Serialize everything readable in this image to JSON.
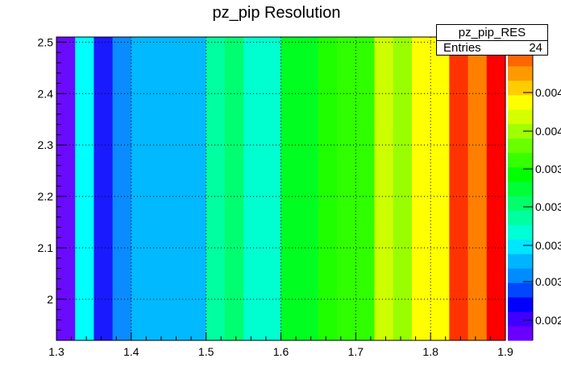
{
  "chart_data": {
    "type": "heatmap",
    "title": "pz_pip Resolution",
    "xlabel": "",
    "ylabel": "",
    "xlim": [
      1.3,
      1.9
    ],
    "ylim": [
      1.92,
      2.51
    ],
    "x_ticks": [
      "1.3",
      "1.4",
      "1.5",
      "1.6",
      "1.7",
      "1.8",
      "1.9"
    ],
    "y_ticks": [
      "2",
      "2.1",
      "2.2",
      "2.3",
      "2.4",
      "2.5"
    ],
    "grid": true,
    "x_bin_edges": [
      1.3,
      1.325,
      1.35,
      1.375,
      1.4,
      1.425,
      1.45,
      1.475,
      1.5,
      1.525,
      1.55,
      1.575,
      1.6,
      1.625,
      1.65,
      1.675,
      1.7,
      1.725,
      1.75,
      1.775,
      1.8,
      1.825,
      1.85,
      1.875,
      1.9
    ],
    "values": [
      0.00225,
      0.00275,
      0.00235,
      0.00255,
      0.0027,
      0.0027,
      0.0027,
      0.0027,
      0.00295,
      0.00305,
      0.00285,
      0.00285,
      0.0032,
      0.0032,
      0.00325,
      0.0033,
      0.0033,
      0.0036,
      0.00365,
      0.0038,
      0.0038,
      0.00415,
      0.0043,
      0.0044
    ],
    "colorbar_labels": [
      "0.002",
      "0.003",
      "0.003",
      "0.003",
      "0.003",
      "0.004",
      "0.004"
    ],
    "colors": {
      "0.00225": "#6a0aff",
      "0.00235": "#1a1aff",
      "0.00255": "#0a8bff",
      "0.0027": "#00b9ff",
      "0.00275": "#00ffff",
      "0.00285": "#00ffd0",
      "0.00295": "#00ffa0",
      "0.00305": "#00ff70",
      "0.0032": "#00ff20",
      "0.00325": "#20ff00",
      "0.0033": "#30ff00",
      "0.0036": "#ccff00",
      "0.00365": "#99ff00",
      "0.0038": "#ffff00",
      "0.00415": "#ff3300",
      "0.0043": "#ff7f00",
      "0.0044": "#ff0000"
    },
    "colorbar_colors": [
      "#6a00ff",
      "#3f00ff",
      "#0000ff",
      "#0047ff",
      "#008bff",
      "#00b4ff",
      "#00e6ff",
      "#00ffd5",
      "#00ffa0",
      "#00ff6a",
      "#00ff36",
      "#00ff00",
      "#36ff00",
      "#6aff00",
      "#a0ff00",
      "#d5ff00",
      "#ffff00",
      "#ffcc00",
      "#ff9900",
      "#ff6600",
      "#ff3300"
    ]
  },
  "stats": {
    "name": "pz_pip_RES",
    "entries_label": "Entries",
    "entries_value": "24"
  }
}
